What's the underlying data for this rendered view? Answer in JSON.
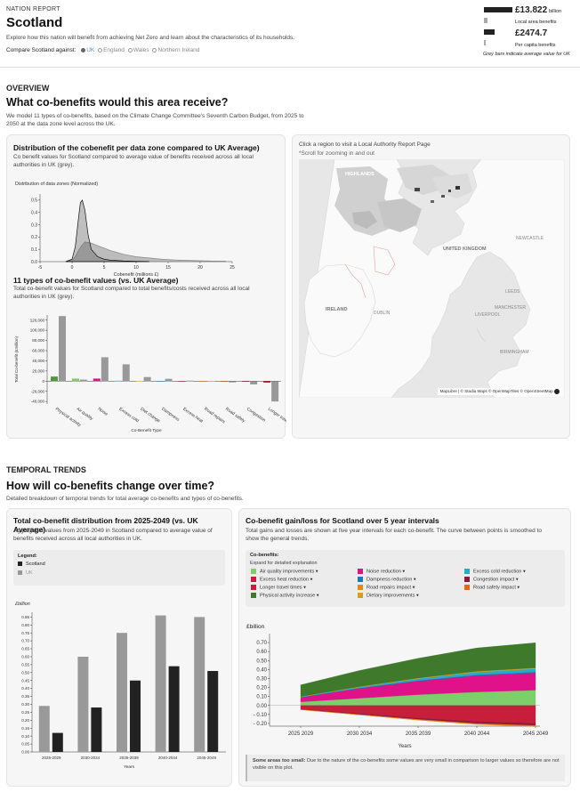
{
  "header": {
    "kicker": "NATION REPORT",
    "title": "Scotland",
    "intro": "Explore how this nation will benefit from achieving Net Zero and learn about the characteristics of its households.",
    "compare_label": "Compare Scotland against:",
    "compare_options": [
      "UK",
      "England",
      "Wales",
      "Northern Ireland"
    ],
    "selected_option": "UK"
  },
  "summary": {
    "total_value": "£13.822",
    "total_unit": "billion",
    "total_caption": "Local area benefits",
    "per_capita_value": "£2474.7",
    "per_capita_caption": "Per capita benefits",
    "note": "Grey bars indicate average value for UK"
  },
  "overview": {
    "section_label": "OVERVIEW",
    "heading": "What co-benefits would this area receive?",
    "intro": "We model 11 types of co-benefits, based on the Climate Change Committee's Seventh Carbon Budget, from 2025 to 2050 at the data zone level across the UK."
  },
  "distribution_card": {
    "title": "Distribution of the cobenefit per data zone compared to UK Average)",
    "desc": "Co benefit values for Scotland compared to average value of benefits received across all local authorities in UK (grey).",
    "chart_title": "Distribution of data zones (Normalized)",
    "xlabel": "Cobenefit (millions £)"
  },
  "types_card": {
    "title": "11 types of co-benefit values (vs. UK Average)",
    "desc": "Total co-benefit values for Scotland compared to total benefits/costs received across all local authorities in UK (grey).",
    "ylabel": "Total Co-benefit (£million)",
    "xlabel": "Co-Benefit Type"
  },
  "map_card": {
    "hint": "Click a region to visit a Local Authority Report Page",
    "subhint": "*Scroll for zooming in and out",
    "labels": [
      "UNITED KINGDOM",
      "IRELAND",
      "DUBLIN",
      "LEEDS",
      "MANCHESTER",
      "BIRMINGHAM",
      "LIVERPOOL",
      "NEWCASTLE",
      "HIGHLANDS"
    ],
    "attribution": "MapLibre | © Stadia Maps © OpenMapTiles © OpenStreetMap"
  },
  "temporal": {
    "section_label": "TEMPORAL TRENDS",
    "heading": "How will co-benefits change over time?",
    "intro": "Detailed breakdown of temporal trends for total average co-benefits and types of co-benefits."
  },
  "total_card": {
    "title": "Total co-benefit distribution from 2025-2049 (vs. UK Average)",
    "desc": "Aggregated values from 2025-2049 in Scotland compared to average value of benefits received across all local authorities in UK.",
    "legend_title": "Legend:",
    "legend_items": [
      "Scotland",
      "UK"
    ],
    "yunit": "£billion",
    "xlabel": "Years"
  },
  "gainloss_card": {
    "title": "Co-benefit gain/loss for Scotland over 5 year intervals",
    "desc": "Total gains and losses are shown at five year intervals for each co-benefit. The curve between points is smoothed to show the general trends.",
    "legend_title": "Co-benefits:",
    "legend_sub": "Expand for detailed explanation",
    "yunit": "£billion",
    "xlabel": "Years",
    "note_bold": "Some areas too small:",
    "note": "Due to the nature of the co-benefits some values are very small in comparison to larger values so therefore are not visible on this plot."
  },
  "chart_data": [
    {
      "type": "area",
      "title": "Distribution of data zones (Normalized)",
      "xlabel": "Cobenefit (millions £)",
      "xticks": [
        -5,
        0,
        5,
        10,
        15,
        20,
        25
      ],
      "yticks": [
        0.0,
        0.1,
        0.2,
        0.3,
        0.4,
        0.5
      ],
      "xlim": [
        -5,
        25
      ],
      "ylim": [
        0,
        0.55
      ],
      "series": [
        {
          "name": "UK",
          "x": [
            -1,
            0,
            0.5,
            1,
            1.5,
            2,
            3,
            4,
            5,
            6,
            7,
            8,
            9,
            10,
            12,
            14,
            16,
            18,
            20,
            22,
            24
          ],
          "values": [
            0,
            0.01,
            0.04,
            0.09,
            0.13,
            0.16,
            0.15,
            0.13,
            0.11,
            0.09,
            0.075,
            0.06,
            0.05,
            0.04,
            0.03,
            0.02,
            0.014,
            0.01,
            0.007,
            0.005,
            0.004
          ]
        },
        {
          "name": "Scotland",
          "x": [
            -1,
            0,
            0.5,
            1,
            1.3,
            1.6,
            2,
            2.5,
            3,
            4,
            5,
            6,
            8,
            10,
            12
          ],
          "values": [
            0,
            0.02,
            0.12,
            0.35,
            0.48,
            0.5,
            0.42,
            0.22,
            0.1,
            0.04,
            0.02,
            0.012,
            0.006,
            0.003,
            0.001
          ]
        }
      ]
    },
    {
      "type": "bar",
      "title": "11 types of co-benefit values (vs. UK Average)",
      "ylabel": "Total Co-benefit (£million)",
      "xlabel": "Co-Benefit Type",
      "categories": [
        "Physical activity",
        "Air quality",
        "Noise",
        "Excess cold",
        "Diet change",
        "Dampness",
        "Excess heat",
        "Road repairs",
        "Road safety",
        "Congestion",
        "Longer travel times"
      ],
      "yticks": [
        -40000,
        -20000,
        0,
        20000,
        40000,
        60000,
        80000,
        100000,
        120000
      ],
      "ylim": [
        -45000,
        130000
      ],
      "series": [
        {
          "name": "UK",
          "values": [
            128000,
            3000,
            47000,
            33000,
            8000,
            4500,
            1000,
            500,
            -2500,
            -6500,
            -40000
          ]
        },
        {
          "name": "Scotland",
          "values": [
            9000,
            5000,
            5000,
            800,
            600,
            300,
            100,
            100,
            -200,
            -400,
            -3000
          ]
        }
      ],
      "colors": [
        "#4d9a3a",
        "#7ccf6b",
        "#e0128a",
        "#2aa9c9",
        "#d4a017",
        "#1f77b4",
        "#c81e3c",
        "#e08a1a",
        "#e06a1a",
        "#8b1a3a",
        "#c81e3c"
      ]
    },
    {
      "type": "bar",
      "title": "Total co-benefit distribution from 2025-2049 (vs. UK Average)",
      "categories": [
        "2025-2029",
        "2030-2034",
        "2035-2039",
        "2040-2044",
        "2045-2049"
      ],
      "yticks": [
        0.0,
        0.05,
        0.1,
        0.15,
        0.2,
        0.25,
        0.3,
        0.35,
        0.4,
        0.45,
        0.5,
        0.55,
        0.6,
        0.65,
        0.7,
        0.75,
        0.8,
        0.85
      ],
      "ylim": [
        0,
        0.88
      ],
      "yunit": "£billion",
      "xlabel": "Years",
      "series": [
        {
          "name": "UK",
          "values": [
            0.29,
            0.6,
            0.75,
            0.86,
            0.85
          ]
        },
        {
          "name": "Scotland",
          "values": [
            0.12,
            0.28,
            0.45,
            0.54,
            0.51
          ]
        }
      ]
    },
    {
      "type": "area",
      "title": "Co-benefit gain/loss for Scotland over 5 year intervals",
      "categories": [
        "2025-2029",
        "2030-2034",
        "2035-2039",
        "2040-2044",
        "2045-2049"
      ],
      "yticks": [
        -0.2,
        -0.1,
        0.0,
        0.1,
        0.2,
        0.3,
        0.4,
        0.5,
        0.6,
        0.7
      ],
      "ylim": [
        -0.23,
        0.76
      ],
      "yunit": "£billion",
      "xlabel": "Years",
      "series": [
        {
          "name": "Air quality improvements",
          "color": "#7ccf6b",
          "values": [
            0.04,
            0.08,
            0.12,
            0.15,
            0.17
          ]
        },
        {
          "name": "Noise reduction",
          "color": "#e0128a",
          "values": [
            0.05,
            0.11,
            0.15,
            0.18,
            0.19
          ]
        },
        {
          "name": "Excess cold reduction",
          "color": "#2aa9c9",
          "values": [
            0.005,
            0.01,
            0.02,
            0.03,
            0.035
          ]
        },
        {
          "name": "Excess heat reduction",
          "color": "#c81e3c",
          "values": [
            0.0,
            0.0,
            0.001,
            0.002,
            0.003
          ]
        },
        {
          "name": "Dampness reduction",
          "color": "#1f77b4",
          "values": [
            0.002,
            0.005,
            0.008,
            0.01,
            0.011
          ]
        },
        {
          "name": "Physical activity increase",
          "color": "#3f7a2c",
          "values": [
            0.13,
            0.18,
            0.22,
            0.26,
            0.28
          ]
        },
        {
          "name": "Dietary improvements",
          "color": "#d4a017",
          "values": [
            0.002,
            0.004,
            0.006,
            0.008,
            0.009
          ]
        },
        {
          "name": "Longer travel times",
          "color": "#c81e3c",
          "values": [
            -0.04,
            -0.09,
            -0.14,
            -0.18,
            -0.2
          ]
        },
        {
          "name": "Road repairs impact",
          "color": "#e08a1a",
          "values": [
            0.0,
            -0.001,
            -0.002,
            -0.003,
            -0.004
          ]
        },
        {
          "name": "Congestion impact",
          "color": "#8b1a3a",
          "values": [
            -0.005,
            -0.01,
            -0.015,
            -0.02,
            -0.022
          ]
        },
        {
          "name": "Road safety impact",
          "color": "#e06a1a",
          "values": [
            -0.002,
            -0.004,
            -0.006,
            -0.008,
            -0.009
          ]
        }
      ]
    }
  ]
}
